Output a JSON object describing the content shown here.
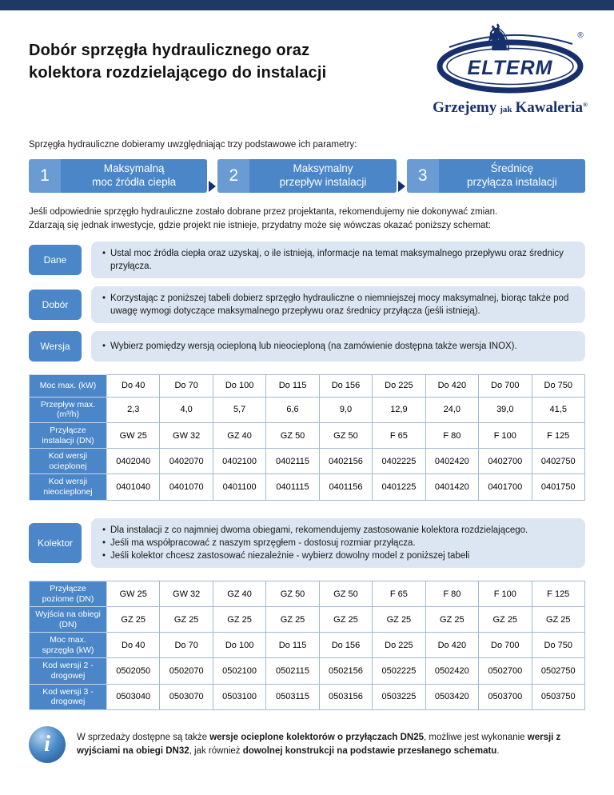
{
  "header": {
    "title_line1": "Dobór sprzęgła hydraulicznego oraz",
    "title_line2": "kolektora rozdzielającego do instalacji"
  },
  "logo": {
    "brand": "ELTERM",
    "brand_reg": "®",
    "horse_glyph": "♞",
    "tagline_left": "Grzejemy",
    "tagline_mid": "jak",
    "tagline_right": "Kawaleria",
    "tagline_reg": "®"
  },
  "intro": "Sprzęgła hydrauliczne dobieramy uwzględniając trzy podstawowe ich parametry:",
  "steps": [
    {
      "num": "1",
      "line1": "Maksymalną",
      "line2": "moc źródła ciepła"
    },
    {
      "num": "2",
      "line1": "Maksymalny",
      "line2": "przepływ instalacji"
    },
    {
      "num": "3",
      "line1": "Średnicę",
      "line2": "przyłącza instalacji"
    }
  ],
  "note_line1": "Jeśli odpowiednie sprzęgło hydrauliczne zostało dobrane przez projektanta, rekomendujemy nie dokonywać zmian.",
  "note_line2": "Zdarzają się jednak inwestycje, gdzie projekt nie istnieje, przydatny może się wówczas okazać poniższy schemat:",
  "callouts": [
    {
      "label": "Dane",
      "bullets": [
        "Ustal moc źródła ciepła oraz uzyskaj, o ile istnieją, informacje na temat maksymalnego przepływu oraz średnicy przyłącza."
      ]
    },
    {
      "label": "Dobór",
      "bullets": [
        "Korzystając z poniższej tabeli dobierz sprzęgło hydrauliczne o niemniejszej mocy maksymalnej, biorąc także pod uwagę wymogi dotyczące maksymalnego przepływu oraz średnicy przyłącza (jeśli istnieją)."
      ]
    },
    {
      "label": "Wersja",
      "bullets": [
        "Wybierz pomiędzy wersją ocieploną lub nieocieploną (na zamówienie dostępna także wersja INOX)."
      ]
    }
  ],
  "table1": {
    "rows": [
      {
        "header": "Moc max. (kW)",
        "values": [
          "Do 40",
          "Do 70",
          "Do 100",
          "Do 115",
          "Do 156",
          "Do 225",
          "Do 420",
          "Do 700",
          "Do 750"
        ]
      },
      {
        "header": "Przepływ max. (m³/h)",
        "values": [
          "2,3",
          "4,0",
          "5,7",
          "6,6",
          "9,0",
          "12,9",
          "24,0",
          "39,0",
          "41,5"
        ]
      },
      {
        "header": "Przyłącze instalacji (DN)",
        "values": [
          "GW 25",
          "GW 32",
          "GZ 40",
          "GZ 50",
          "GZ 50",
          "F 65",
          "F 80",
          "F 100",
          "F 125"
        ]
      },
      {
        "header": "Kod wersji ocieplonej",
        "values": [
          "0402040",
          "0402070",
          "0402100",
          "0402115",
          "0402156",
          "0402225",
          "0402420",
          "0402700",
          "0402750"
        ]
      },
      {
        "header": "Kod wersji nieocieplonej",
        "values": [
          "0401040",
          "0401070",
          "0401100",
          "0401115",
          "0401156",
          "0401225",
          "0401420",
          "0401700",
          "0401750"
        ]
      }
    ]
  },
  "kolektor": {
    "label": "Kolektor",
    "bullets": [
      "Dla instalacji z co najmniej dwoma obiegami, rekomendujemy zastosowanie kolektora rozdzielającego.",
      "Jeśli ma współpracować z naszym sprzęgłem - dostosuj rozmiar przyłącza.",
      "Jeśli kolektor chcesz zastosować niezależnie - wybierz dowolny model z poniższej tabeli"
    ]
  },
  "table2": {
    "rows": [
      {
        "header": "Przyłącze poziome (DN)",
        "values": [
          "GW 25",
          "GW 32",
          "GZ 40",
          "GZ 50",
          "GZ 50",
          "F 65",
          "F 80",
          "F 100",
          "F 125"
        ]
      },
      {
        "header": "Wyjścia na obiegi (DN)",
        "values": [
          "GZ 25",
          "GZ 25",
          "GZ 25",
          "GZ 25",
          "GZ 25",
          "GZ 25",
          "GZ 25",
          "GZ 25",
          "GZ 25"
        ]
      },
      {
        "header": "Moc max. sprzęgła (kW)",
        "values": [
          "Do 40",
          "Do 70",
          "Do 100",
          "Do 115",
          "Do 156",
          "Do 225",
          "Do 420",
          "Do 700",
          "Do 750"
        ]
      },
      {
        "header": "Kod wersji 2 - drogowej",
        "values": [
          "0502050",
          "0502070",
          "0502100",
          "0502115",
          "0502156",
          "0502225",
          "0502420",
          "0502700",
          "0502750"
        ]
      },
      {
        "header": "Kod wersji 3 - drogowej",
        "values": [
          "0503040",
          "0503070",
          "0503100",
          "0503115",
          "0503156",
          "0503225",
          "0503420",
          "0503700",
          "0503750"
        ]
      }
    ]
  },
  "info": {
    "icon_glyph": "i",
    "part1": "W sprzedaży dostępne są także ",
    "bold1": "wersje ocieplone kolektorów o przyłączach DN25",
    "part2": ", możliwe jest wykonanie ",
    "bold2": "wersji z wyjściami na obiegi DN32",
    "part3": ", jak również ",
    "bold3": "dowolnej konstrukcji na podstawie przesłanego schematu",
    "part4": "."
  },
  "colors": {
    "navy": "#1f3864",
    "banner_blue": "#4a86c8",
    "callout_bg": "#dce6f2",
    "table_border": "#a3b8d4"
  }
}
